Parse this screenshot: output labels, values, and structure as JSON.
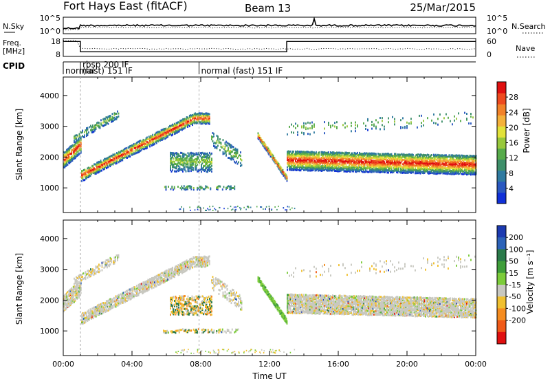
{
  "header": {
    "station": "Fort Hays East (fitACF)",
    "beam": "Beam 13",
    "date": "25/Mar/2015"
  },
  "noise_panel": {
    "left_label": "N.Sky",
    "right_label": "N.Search",
    "left_top_tick": "10^5",
    "left_bottom_tick": "10^0",
    "right_top_tick": "10^5",
    "right_bottom_tick": "10^0",
    "spike_time_hours": 14.6
  },
  "freq_panel": {
    "left_label_1": "Freq.",
    "left_label_2": "[MHz]",
    "right_label": "Nave",
    "left_top_tick": "18",
    "left_bottom_tick": "8",
    "right_top_tick": "60",
    "right_bottom_tick": "0",
    "freq_segments": [
      {
        "start_h": 0.0,
        "end_h": 1.0,
        "value_mhz": 17
      },
      {
        "start_h": 1.0,
        "end_h": 13.0,
        "value_mhz": 10.5
      },
      {
        "start_h": 13.0,
        "end_h": 24.0,
        "value_mhz": 17
      }
    ]
  },
  "cpid_panel": {
    "label": "CPID",
    "segments": [
      {
        "start_h": 0.0,
        "line1": "",
        "line2": "normal"
      },
      {
        "start_h": 1.0,
        "line1": "rbsp 200 IF",
        "line2": "(fast) 151 IF"
      },
      {
        "start_h": 7.9,
        "line1": "",
        "line2": "normal (fast) 151 IF"
      }
    ]
  },
  "chart_data": [
    {
      "type": "heatmap",
      "name": "power",
      "ylabel": "Slant Range [km]",
      "xlim": [
        0,
        24
      ],
      "ylim": [
        200,
        4600
      ],
      "yticks": [
        1000,
        2000,
        3000,
        4000
      ],
      "colorbar": {
        "label": "Power [dB]",
        "ticks": [
          4,
          8,
          12,
          16,
          20,
          24,
          28
        ],
        "range": [
          0,
          32
        ],
        "colors": [
          "#1030d8",
          "#2a58c0",
          "#2f7aa0",
          "#3e8f6a",
          "#57ab4b",
          "#98c83c",
          "#e2e23a",
          "#f4b13a",
          "#f28229",
          "#ee4a1f",
          "#e01010"
        ]
      }
    },
    {
      "type": "heatmap",
      "name": "velocity",
      "xlabel": "Time UT",
      "ylabel": "Slant Range [km]",
      "xlim": [
        0,
        24
      ],
      "ylim": [
        200,
        4600
      ],
      "xticks": [
        "00:00",
        "04:00",
        "08:00",
        "12:00",
        "16:00",
        "20:00",
        "00:00"
      ],
      "yticks": [
        1000,
        2000,
        3000,
        4000
      ],
      "colorbar": {
        "label": "Velocity [m s⁻¹]",
        "ticks": [
          200,
          100,
          50,
          15,
          -15,
          -50,
          -100,
          -200
        ],
        "colors": [
          "#1c3ab0",
          "#2c62b8",
          "#2a7a4a",
          "#3f9e3a",
          "#7ccc3a",
          "#c8c8c0",
          "#f0c030",
          "#f58c20",
          "#f05a18",
          "#e01010"
        ]
      }
    }
  ]
}
